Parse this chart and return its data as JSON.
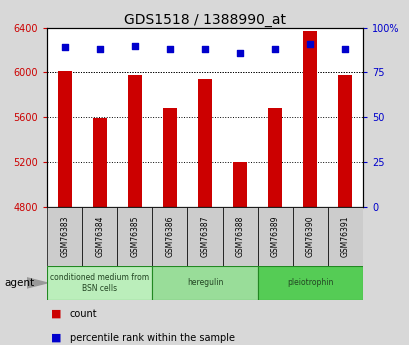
{
  "title": "GDS1518 / 1388990_at",
  "categories": [
    "GSM76383",
    "GSM76384",
    "GSM76385",
    "GSM76386",
    "GSM76387",
    "GSM76388",
    "GSM76389",
    "GSM76390",
    "GSM76391"
  ],
  "bar_values": [
    6012,
    5590,
    5975,
    5680,
    5940,
    5200,
    5680,
    6370,
    5980
  ],
  "percentile_values": [
    89,
    88,
    90,
    88,
    88,
    86,
    88,
    91,
    88
  ],
  "bar_color": "#cc0000",
  "percentile_color": "#0000cc",
  "ylim_left": [
    4800,
    6400
  ],
  "ylim_right": [
    0,
    100
  ],
  "yticks_left": [
    4800,
    5200,
    5600,
    6000,
    6400
  ],
  "yticks_right": [
    0,
    25,
    50,
    75,
    100
  ],
  "yticklabels_right": [
    "0",
    "25",
    "50",
    "75",
    "100%"
  ],
  "groups": [
    {
      "label": "conditioned medium from\nBSN cells",
      "start": 0,
      "end": 3,
      "color": "#bbeebb"
    },
    {
      "label": "heregulin",
      "start": 3,
      "end": 6,
      "color": "#99dd99"
    },
    {
      "label": "pleiotrophin",
      "start": 6,
      "end": 9,
      "color": "#55cc55"
    }
  ],
  "agent_label": "agent",
  "legend_count_label": "count",
  "legend_percentile_label": "percentile rank within the sample",
  "background_color": "#d8d8d8",
  "plot_bg_color": "#ffffff",
  "grid_color": "#000000",
  "title_color": "#000000",
  "left_tick_color": "#cc0000",
  "right_tick_color": "#0000cc",
  "cat_box_color": "#cccccc",
  "bar_width": 0.4
}
